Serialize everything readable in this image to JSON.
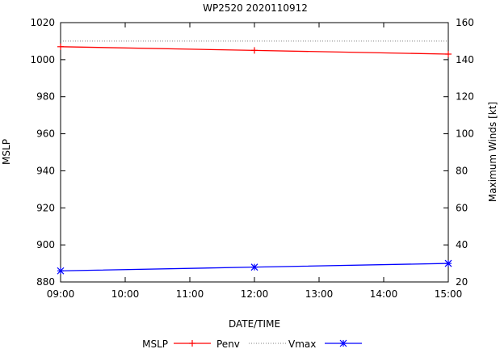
{
  "chart_data": {
    "type": "line",
    "title": "WP2520 2020110912",
    "xlabel": "DATE/TIME",
    "ylabel_left": "MSLP",
    "ylabel_right": "Maximum Winds [kt]",
    "x_ticks": [
      "09:00",
      "10:00",
      "11:00",
      "12:00",
      "13:00",
      "14:00",
      "15:00"
    ],
    "x_hours": [
      9,
      10,
      11,
      12,
      13,
      14,
      15
    ],
    "y_left_range": [
      880,
      1020
    ],
    "y_left_ticks": [
      880,
      900,
      920,
      940,
      960,
      980,
      1000,
      1020
    ],
    "y_right_range": [
      20,
      160
    ],
    "y_right_ticks": [
      20,
      40,
      60,
      80,
      100,
      120,
      140,
      160
    ],
    "grid": false,
    "legend_position": "bottom",
    "legend_title": "MSLP",
    "series": [
      {
        "name": "Penv",
        "axis": "left",
        "color": "#ff0000",
        "marker": "plus",
        "x": [
          9,
          12,
          15
        ],
        "values": [
          1007,
          1005,
          1003
        ]
      },
      {
        "name": "",
        "axis": "left",
        "color": "#808080",
        "line_style": "dotted",
        "x": [
          9,
          15
        ],
        "values": [
          1010,
          1010
        ]
      },
      {
        "name": "Vmax",
        "axis": "right",
        "color": "#0000ff",
        "marker": "star",
        "x": [
          9,
          12,
          15
        ],
        "values": [
          26,
          28,
          30
        ]
      }
    ]
  }
}
